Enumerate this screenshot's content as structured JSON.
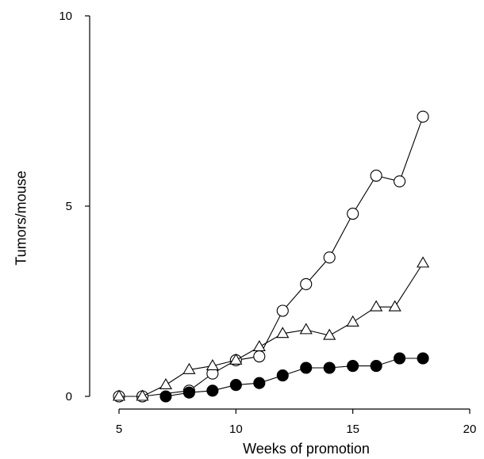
{
  "chart_data": {
    "type": "line",
    "title": "",
    "xlabel": "Weeks of promotion",
    "ylabel": "Tumors/mouse",
    "xlim": [
      5,
      20
    ],
    "ylim": [
      0,
      10
    ],
    "xticks": [
      5,
      10,
      15,
      20
    ],
    "yticks": [
      0,
      5,
      10
    ],
    "grid": false,
    "legend": "none",
    "series": [
      {
        "marker": "open-circle",
        "color": "#000000",
        "fill": "#ffffff",
        "x": [
          5,
          6,
          8,
          9,
          10,
          11,
          12,
          13,
          14,
          15,
          16,
          17,
          18
        ],
        "y": [
          0.0,
          0.0,
          0.15,
          0.6,
          0.95,
          1.05,
          2.25,
          2.95,
          3.65,
          4.8,
          5.8,
          5.65,
          7.35
        ]
      },
      {
        "marker": "open-triangle",
        "color": "#000000",
        "fill": "#ffffff",
        "x": [
          5,
          6,
          7,
          8,
          9,
          10,
          11,
          12,
          13,
          14,
          15,
          16,
          16.8,
          18
        ],
        "y": [
          0.0,
          0.0,
          0.3,
          0.7,
          0.8,
          0.95,
          1.3,
          1.65,
          1.75,
          1.6,
          1.95,
          2.35,
          2.35,
          3.5
        ]
      },
      {
        "marker": "filled-circle",
        "color": "#000000",
        "fill": "#000000",
        "x": [
          7,
          8,
          9,
          10,
          11,
          12,
          13,
          14,
          15,
          16,
          17,
          18
        ],
        "y": [
          0.0,
          0.1,
          0.15,
          0.3,
          0.35,
          0.55,
          0.75,
          0.75,
          0.8,
          0.8,
          1.0,
          1.0
        ]
      }
    ]
  }
}
